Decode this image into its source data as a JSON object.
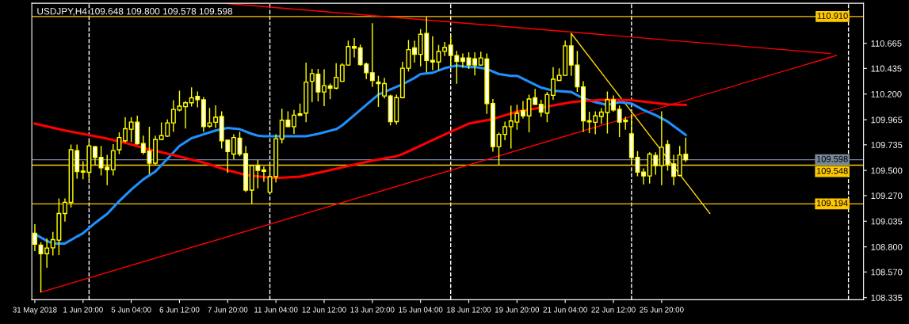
{
  "chart_data": {
    "type": "candlestick",
    "title": "USDJPY,H4 109.648 109.800 109.578 109.598",
    "categories": [
      "31 May 2018",
      null,
      null,
      null,
      null,
      null,
      null,
      null,
      "1 Jun 20:00",
      null,
      null,
      null,
      null,
      null,
      null,
      null,
      "5 Jun 04:00",
      null,
      null,
      null,
      null,
      null,
      null,
      null,
      "6 Jun 12:00",
      null,
      null,
      null,
      null,
      null,
      null,
      null,
      "7 Jun 20:00",
      null,
      null,
      null,
      null,
      null,
      null,
      null,
      "11 Jun 04:00",
      null,
      null,
      null,
      null,
      null,
      null,
      null,
      "12 Jun 12:00",
      null,
      null,
      null,
      null,
      null,
      null,
      null,
      "13 Jun 20:00",
      null,
      null,
      null,
      null,
      null,
      null,
      null,
      "15 Jun 04:00",
      null,
      null,
      null,
      null,
      null,
      null,
      null,
      "18 Jun 12:00",
      null,
      null,
      null,
      null,
      null,
      null,
      null,
      "19 Jun 20:00",
      null,
      null,
      null,
      null,
      null,
      null,
      null,
      "21 Jun 04:00",
      null,
      null,
      null,
      null,
      null,
      null,
      null,
      "22 Jun 12:00",
      null,
      null,
      null,
      null,
      null,
      null,
      null,
      "25 Jun 20:00",
      null,
      null,
      null,
      null,
      null,
      null,
      null,
      null,
      null,
      null,
      null,
      null,
      null,
      null,
      null,
      null,
      null,
      null,
      null,
      null,
      null,
      null,
      null,
      null,
      null,
      null,
      null,
      null,
      null,
      null,
      null,
      null,
      null
    ],
    "ohlc": [
      [
        108.925,
        109.007,
        108.761,
        108.824
      ],
      [
        108.815,
        108.843,
        108.384,
        108.737
      ],
      [
        108.737,
        108.878,
        108.608,
        108.789
      ],
      [
        108.791,
        108.937,
        108.721,
        108.866
      ],
      [
        108.862,
        109.243,
        108.725,
        109.106
      ],
      [
        109.106,
        109.243,
        109.031,
        109.207
      ],
      [
        109.207,
        109.737,
        109.16,
        109.69
      ],
      [
        109.682,
        109.737,
        109.426,
        109.49
      ],
      [
        109.494,
        109.584,
        109.419,
        109.485
      ],
      [
        109.483,
        109.772,
        109.414,
        109.725
      ],
      [
        109.718,
        109.725,
        109.548,
        109.619
      ],
      [
        109.619,
        109.725,
        109.454,
        109.525
      ],
      [
        109.53,
        109.642,
        109.365,
        109.506
      ],
      [
        109.506,
        109.741,
        109.454,
        109.682
      ],
      [
        109.69,
        109.849,
        109.65,
        109.802
      ],
      [
        109.772,
        109.988,
        109.755,
        109.882
      ],
      [
        109.878,
        109.988,
        109.76,
        109.943
      ],
      [
        109.943,
        110.002,
        109.737,
        109.744
      ],
      [
        109.746,
        109.819,
        109.647,
        109.666
      ],
      [
        109.678,
        109.901,
        109.466,
        109.567
      ],
      [
        109.567,
        109.819,
        109.548,
        109.784
      ],
      [
        109.784,
        109.941,
        109.777,
        109.819
      ],
      [
        109.814,
        109.967,
        109.807,
        109.936
      ],
      [
        109.936,
        110.143,
        109.854,
        110.059
      ],
      [
        110.054,
        110.23,
        110.042,
        110.089
      ],
      [
        110.085,
        110.136,
        109.885,
        110.12
      ],
      [
        110.12,
        110.261,
        110.085,
        110.165
      ],
      [
        110.179,
        110.223,
        110.078,
        110.148
      ],
      [
        110.148,
        110.172,
        109.854,
        109.901
      ],
      [
        109.906,
        110.073,
        109.889,
        109.936
      ],
      [
        109.941,
        110.096,
        109.889,
        109.988
      ],
      [
        109.995,
        110.042,
        109.701,
        109.772
      ],
      [
        109.777,
        109.784,
        109.478,
        109.673
      ],
      [
        109.65,
        109.831,
        109.602,
        109.802
      ],
      [
        109.795,
        109.854,
        109.631,
        109.65
      ],
      [
        109.654,
        109.725,
        109.301,
        109.32
      ],
      [
        109.32,
        109.548,
        109.194,
        109.544
      ],
      [
        109.544,
        109.596,
        109.337,
        109.501
      ],
      [
        109.506,
        109.537,
        109.396,
        109.492
      ],
      [
        109.301,
        109.548,
        109.29,
        109.443
      ],
      [
        109.443,
        109.831,
        109.391,
        109.791
      ],
      [
        109.788,
        110.066,
        109.748,
        109.96
      ],
      [
        109.96,
        110.042,
        109.897,
        109.901
      ],
      [
        109.901,
        110.054,
        109.835,
        110.007
      ],
      [
        110.019,
        110.113,
        110.0,
        110.005
      ],
      [
        110.026,
        110.489,
        109.943,
        110.31
      ],
      [
        110.317,
        110.43,
        110.125,
        110.388
      ],
      [
        110.381,
        110.43,
        110.132,
        110.219
      ],
      [
        110.219,
        110.426,
        110.089,
        110.277
      ],
      [
        110.275,
        110.296,
        110.153,
        110.254
      ],
      [
        110.254,
        110.482,
        110.242,
        110.353
      ],
      [
        110.317,
        110.482,
        110.313,
        110.466
      ],
      [
        110.466,
        110.689,
        110.459,
        110.635
      ],
      [
        110.635,
        110.713,
        110.536,
        110.621
      ],
      [
        110.623,
        110.654,
        110.459,
        110.47
      ],
      [
        110.475,
        110.489,
        110.336,
        110.395
      ],
      [
        110.395,
        110.849,
        110.266,
        110.325
      ],
      [
        110.31,
        110.367,
        110.082,
        110.296
      ],
      [
        110.183,
        110.348,
        110.16,
        110.296
      ],
      [
        110.183,
        110.195,
        109.913,
        109.948
      ],
      [
        109.948,
        110.195,
        109.92,
        110.167
      ],
      [
        110.167,
        110.496,
        110.16,
        110.437
      ],
      [
        110.437,
        110.696,
        110.407,
        110.607
      ],
      [
        110.623,
        110.689,
        110.489,
        110.564
      ],
      [
        110.564,
        110.795,
        110.454,
        110.748
      ],
      [
        110.755,
        110.908,
        110.4,
        110.508
      ],
      [
        110.508,
        110.729,
        110.419,
        110.494
      ],
      [
        110.494,
        110.649,
        110.419,
        110.59
      ],
      [
        110.593,
        110.677,
        110.548,
        110.626
      ],
      [
        110.649,
        110.736,
        110.454,
        110.553
      ],
      [
        110.553,
        110.595,
        110.294,
        110.499
      ],
      [
        110.531,
        110.571,
        110.442,
        110.499
      ],
      [
        110.531,
        110.583,
        110.43,
        110.466
      ],
      [
        110.524,
        110.583,
        110.371,
        110.466
      ],
      [
        110.466,
        110.588,
        110.459,
        110.531
      ],
      [
        110.522,
        110.571,
        110.019,
        110.113
      ],
      [
        110.113,
        110.155,
        109.671,
        109.718
      ],
      [
        109.718,
        109.847,
        109.548,
        109.831
      ],
      [
        109.831,
        109.948,
        109.777,
        109.901
      ],
      [
        109.901,
        110.094,
        109.701,
        109.953
      ],
      [
        109.943,
        110.101,
        109.873,
        110.024
      ],
      [
        110.047,
        110.136,
        109.976,
        110.0
      ],
      [
        110.0,
        110.195,
        109.849,
        110.155
      ],
      [
        110.165,
        110.247,
        110.101,
        110.106
      ],
      [
        110.106,
        110.148,
        109.991,
        110.035
      ],
      [
        110.026,
        110.219,
        109.943,
        110.195
      ],
      [
        110.188,
        110.447,
        110.148,
        110.336
      ],
      [
        110.325,
        110.435,
        110.32,
        110.371
      ],
      [
        110.371,
        110.689,
        110.367,
        110.642
      ],
      [
        110.642,
        110.755,
        110.367,
        110.466
      ],
      [
        110.466,
        110.595,
        110.219,
        110.266
      ],
      [
        110.266,
        110.317,
        109.854,
        109.955
      ],
      [
        109.955,
        110.038,
        109.842,
        109.946
      ],
      [
        109.941,
        110.042,
        109.831,
        110.0
      ],
      [
        109.995,
        110.071,
        109.925,
        110.035
      ],
      [
        110.031,
        110.223,
        109.838,
        110.148
      ],
      [
        110.148,
        110.188,
        110.038,
        110.054
      ],
      [
        110.061,
        110.094,
        109.807,
        109.943
      ],
      [
        109.96,
        109.991,
        109.873,
        109.948
      ],
      [
        109.835,
        110.019,
        109.572,
        109.619
      ],
      [
        109.619,
        109.678,
        109.447,
        109.485
      ],
      [
        109.485,
        109.52,
        109.372,
        109.45
      ],
      [
        109.45,
        109.666,
        109.379,
        109.65
      ],
      [
        109.638,
        109.666,
        109.461,
        109.544
      ],
      [
        109.544,
        110.042,
        109.365,
        109.713
      ],
      [
        109.737,
        109.777,
        109.497,
        109.553
      ],
      [
        109.56,
        109.642,
        109.365,
        109.447
      ],
      [
        109.454,
        109.725,
        109.447,
        109.642
      ],
      [
        109.648,
        109.8,
        109.578,
        109.598
      ],
      null,
      null,
      null,
      null,
      null,
      null,
      null,
      null,
      null,
      null,
      null,
      null,
      null,
      null,
      null,
      null,
      null,
      null,
      null,
      null,
      null,
      null,
      null,
      null,
      null,
      null,
      null,
      null,
      null
    ],
    "series": [
      {
        "type": "line",
        "color": "#1e90ff",
        "values": [
          108.918,
          null,
          108.855,
          108.831,
          null,
          108.831,
          null,
          108.895,
          108.925,
          null,
          109.019,
          null,
          109.102,
          null,
          109.219,
          null,
          109.325,
          null,
          109.419,
          null,
          109.49,
          null,
          109.607,
          null,
          109.725,
          null,
          109.795,
          null,
          109.831,
          null,
          109.866,
          null,
          109.889,
          null,
          109.878,
          null,
          109.835,
          109.819,
          109.814,
          null,
          109.814,
          null,
          null,
          null,
          null,
          109.814,
          null,
          109.835,
          null,
          null,
          109.878,
          109.913,
          null,
          110.007,
          null,
          110.101,
          null,
          110.195,
          null,
          110.242,
          null,
          110.289,
          null,
          110.348,
          110.383,
          null,
          110.395,
          null,
          110.437,
          null,
          110.461,
          null,
          110.447,
          110.449,
          null,
          110.43,
          null,
          110.383,
          null,
          110.367,
          110.367,
          null,
          110.313,
          null,
          110.259,
          null,
          110.23,
          null,
          null,
          110.219,
          null,
          110.16,
          null,
          110.125,
          null,
          110.101,
          null,
          110.125,
          null,
          110.113,
          null,
          110.054,
          null,
          110.007,
          null,
          109.948,
          null,
          109.866,
          109.826,
          null,
          null,
          null,
          null,
          null,
          null,
          null,
          null,
          null,
          null,
          null,
          null,
          null,
          null,
          null,
          null,
          null,
          null,
          null,
          null,
          null,
          null,
          null,
          null,
          null,
          null,
          null,
          null,
          null
        ]
      },
      {
        "type": "line",
        "color": "#ff0000",
        "values": [
          109.929,
          null,
          null,
          null,
          null,
          109.866,
          null,
          null,
          null,
          109.824,
          null,
          null,
          109.791,
          null,
          null,
          109.753,
          null,
          null,
          109.706,
          null,
          null,
          null,
          109.654,
          null,
          null,
          109.614,
          null,
          null,
          109.572,
          null,
          null,
          null,
          109.501,
          null,
          null,
          109.459,
          null,
          109.445,
          null,
          null,
          109.431,
          null,
          null,
          null,
          109.443,
          null,
          null,
          null,
          109.49,
          null,
          null,
          null,
          109.541,
          null,
          null,
          null,
          109.591,
          null,
          null,
          null,
          109.631,
          109.65,
          null,
          null,
          null,
          109.753,
          null,
          null,
          null,
          109.854,
          null,
          null,
          109.929,
          null,
          null,
          null,
          109.972,
          null,
          null,
          null,
          110.038,
          null,
          null,
          null,
          null,
          110.085,
          null,
          null,
          null,
          110.125,
          null,
          110.136,
          null,
          null,
          null,
          110.148,
          null,
          null,
          null,
          110.143,
          null,
          null,
          null,
          110.118,
          null,
          110.106,
          null,
          null,
          110.101,
          null,
          null,
          null,
          null,
          null,
          null,
          null,
          null,
          null,
          null,
          null,
          null,
          null,
          null,
          null,
          null,
          null,
          null,
          null,
          null,
          null,
          null,
          null,
          null,
          null,
          null,
          null,
          null,
          null
        ]
      },
      {
        "type": "line",
        "color": "#ff0000",
        "values": [
          null,
          null,
          null,
          null,
          null,
          null,
          null,
          null,
          null,
          null,
          null,
          null,
          null,
          null,
          null,
          null,
          null,
          null,
          null,
          null,
          null,
          null,
          null,
          null,
          null,
          null,
          null,
          null,
          null,
          null,
          null,
          null,
          111.029,
          null,
          null,
          null,
          null,
          null,
          null,
          null,
          null,
          null,
          null,
          null,
          null,
          null,
          null,
          null,
          null,
          null,
          null,
          null,
          null,
          null,
          null,
          null,
          null,
          null,
          null,
          null,
          null,
          null,
          null,
          null,
          null,
          null,
          null,
          null,
          null,
          null,
          null,
          null,
          null,
          null,
          null,
          null,
          null,
          null,
          null,
          null,
          null,
          null,
          null,
          null,
          null,
          null,
          null,
          null,
          null,
          null,
          null,
          null,
          null,
          null,
          null,
          null,
          null,
          null,
          null,
          null,
          null,
          null,
          null,
          null,
          null,
          null,
          null,
          null,
          null,
          null,
          null,
          null,
          null,
          null,
          null,
          null,
          null,
          null,
          null,
          null,
          null,
          null,
          null,
          null,
          null,
          null,
          null,
          null,
          null,
          null,
          null,
          null,
          110.571,
          null,
          null,
          null,
          null,
          null
        ]
      },
      {
        "type": "line",
        "color": "#ff0000",
        "values": [
          null,
          108.384,
          null,
          null,
          null,
          null,
          null,
          null,
          null,
          null,
          null,
          null,
          null,
          null,
          null,
          null,
          null,
          null,
          null,
          null,
          null,
          null,
          null,
          null,
          null,
          null,
          null,
          null,
          null,
          null,
          null,
          null,
          null,
          null,
          null,
          null,
          null,
          null,
          null,
          null,
          null,
          null,
          null,
          null,
          null,
          null,
          null,
          null,
          null,
          null,
          null,
          null,
          null,
          null,
          null,
          null,
          null,
          null,
          null,
          null,
          null,
          null,
          null,
          null,
          null,
          null,
          null,
          null,
          null,
          null,
          null,
          null,
          null,
          null,
          null,
          null,
          null,
          null,
          null,
          null,
          null,
          null,
          null,
          null,
          null,
          null,
          null,
          null,
          null,
          null,
          null,
          null,
          null,
          null,
          null,
          null,
          null,
          null,
          null,
          null,
          null,
          null,
          null,
          null,
          null,
          null,
          null,
          null,
          null,
          null,
          null,
          null,
          null,
          null,
          null,
          null,
          null,
          null,
          null,
          null,
          null,
          null,
          null,
          null,
          null,
          null,
          null,
          null,
          null,
          null,
          null,
          null,
          null,
          110.554,
          null,
          null,
          null,
          null
        ]
      },
      {
        "type": "line",
        "color": "#ffd700",
        "values": [
          null,
          null,
          null,
          null,
          null,
          null,
          null,
          null,
          null,
          null,
          null,
          null,
          null,
          null,
          null,
          null,
          null,
          null,
          null,
          null,
          null,
          null,
          null,
          null,
          null,
          null,
          null,
          null,
          null,
          null,
          null,
          null,
          null,
          null,
          null,
          null,
          null,
          null,
          null,
          null,
          null,
          null,
          null,
          null,
          null,
          null,
          null,
          null,
          null,
          null,
          null,
          null,
          null,
          null,
          null,
          null,
          null,
          null,
          null,
          null,
          null,
          null,
          null,
          null,
          null,
          null,
          null,
          null,
          null,
          null,
          null,
          null,
          null,
          null,
          null,
          null,
          null,
          null,
          null,
          null,
          null,
          null,
          null,
          null,
          null,
          null,
          null,
          null,
          null,
          110.755,
          null,
          null,
          null,
          null,
          null,
          null,
          null,
          null,
          null,
          null,
          null,
          null,
          null,
          null,
          null,
          null,
          null,
          null,
          null,
          null,
          null,
          null,
          109.106,
          null,
          null,
          null,
          null,
          null,
          null,
          null,
          null,
          null,
          null,
          null,
          null,
          null,
          null,
          null,
          null,
          null,
          null,
          null,
          null,
          null,
          null,
          null,
          null,
          null
        ]
      }
    ],
    "ylim": [
      108.316,
      111.032
    ],
    "yticks": [
      {
        "value": 110.665,
        "label": "110.665"
      },
      {
        "value": 110.435,
        "label": "110.435"
      },
      {
        "value": 110.2,
        "label": "110.200"
      },
      {
        "value": 109.965,
        "label": "109.965"
      },
      {
        "value": 109.735,
        "label": "109.735"
      },
      {
        "value": 109.5,
        "label": "109.500"
      },
      {
        "value": 109.27,
        "label": "109.270"
      },
      {
        "value": 109.035,
        "label": "109.035"
      },
      {
        "value": 108.8,
        "label": "108.800"
      },
      {
        "value": 108.57,
        "label": "108.570"
      },
      {
        "value": 108.335,
        "label": "108.335"
      }
    ],
    "ref_lines": [
      {
        "axis": "y",
        "value": 110.91,
        "label": "110.910",
        "color": "#ffc800"
      },
      {
        "axis": "y",
        "value": 109.598,
        "label": "109.598",
        "color": "#778899"
      },
      {
        "axis": "y",
        "value": 109.548,
        "label": "109.548",
        "color": "#ffc800"
      },
      {
        "axis": "y",
        "value": 109.194,
        "label": "109.194",
        "color": "#ffc800"
      }
    ]
  }
}
